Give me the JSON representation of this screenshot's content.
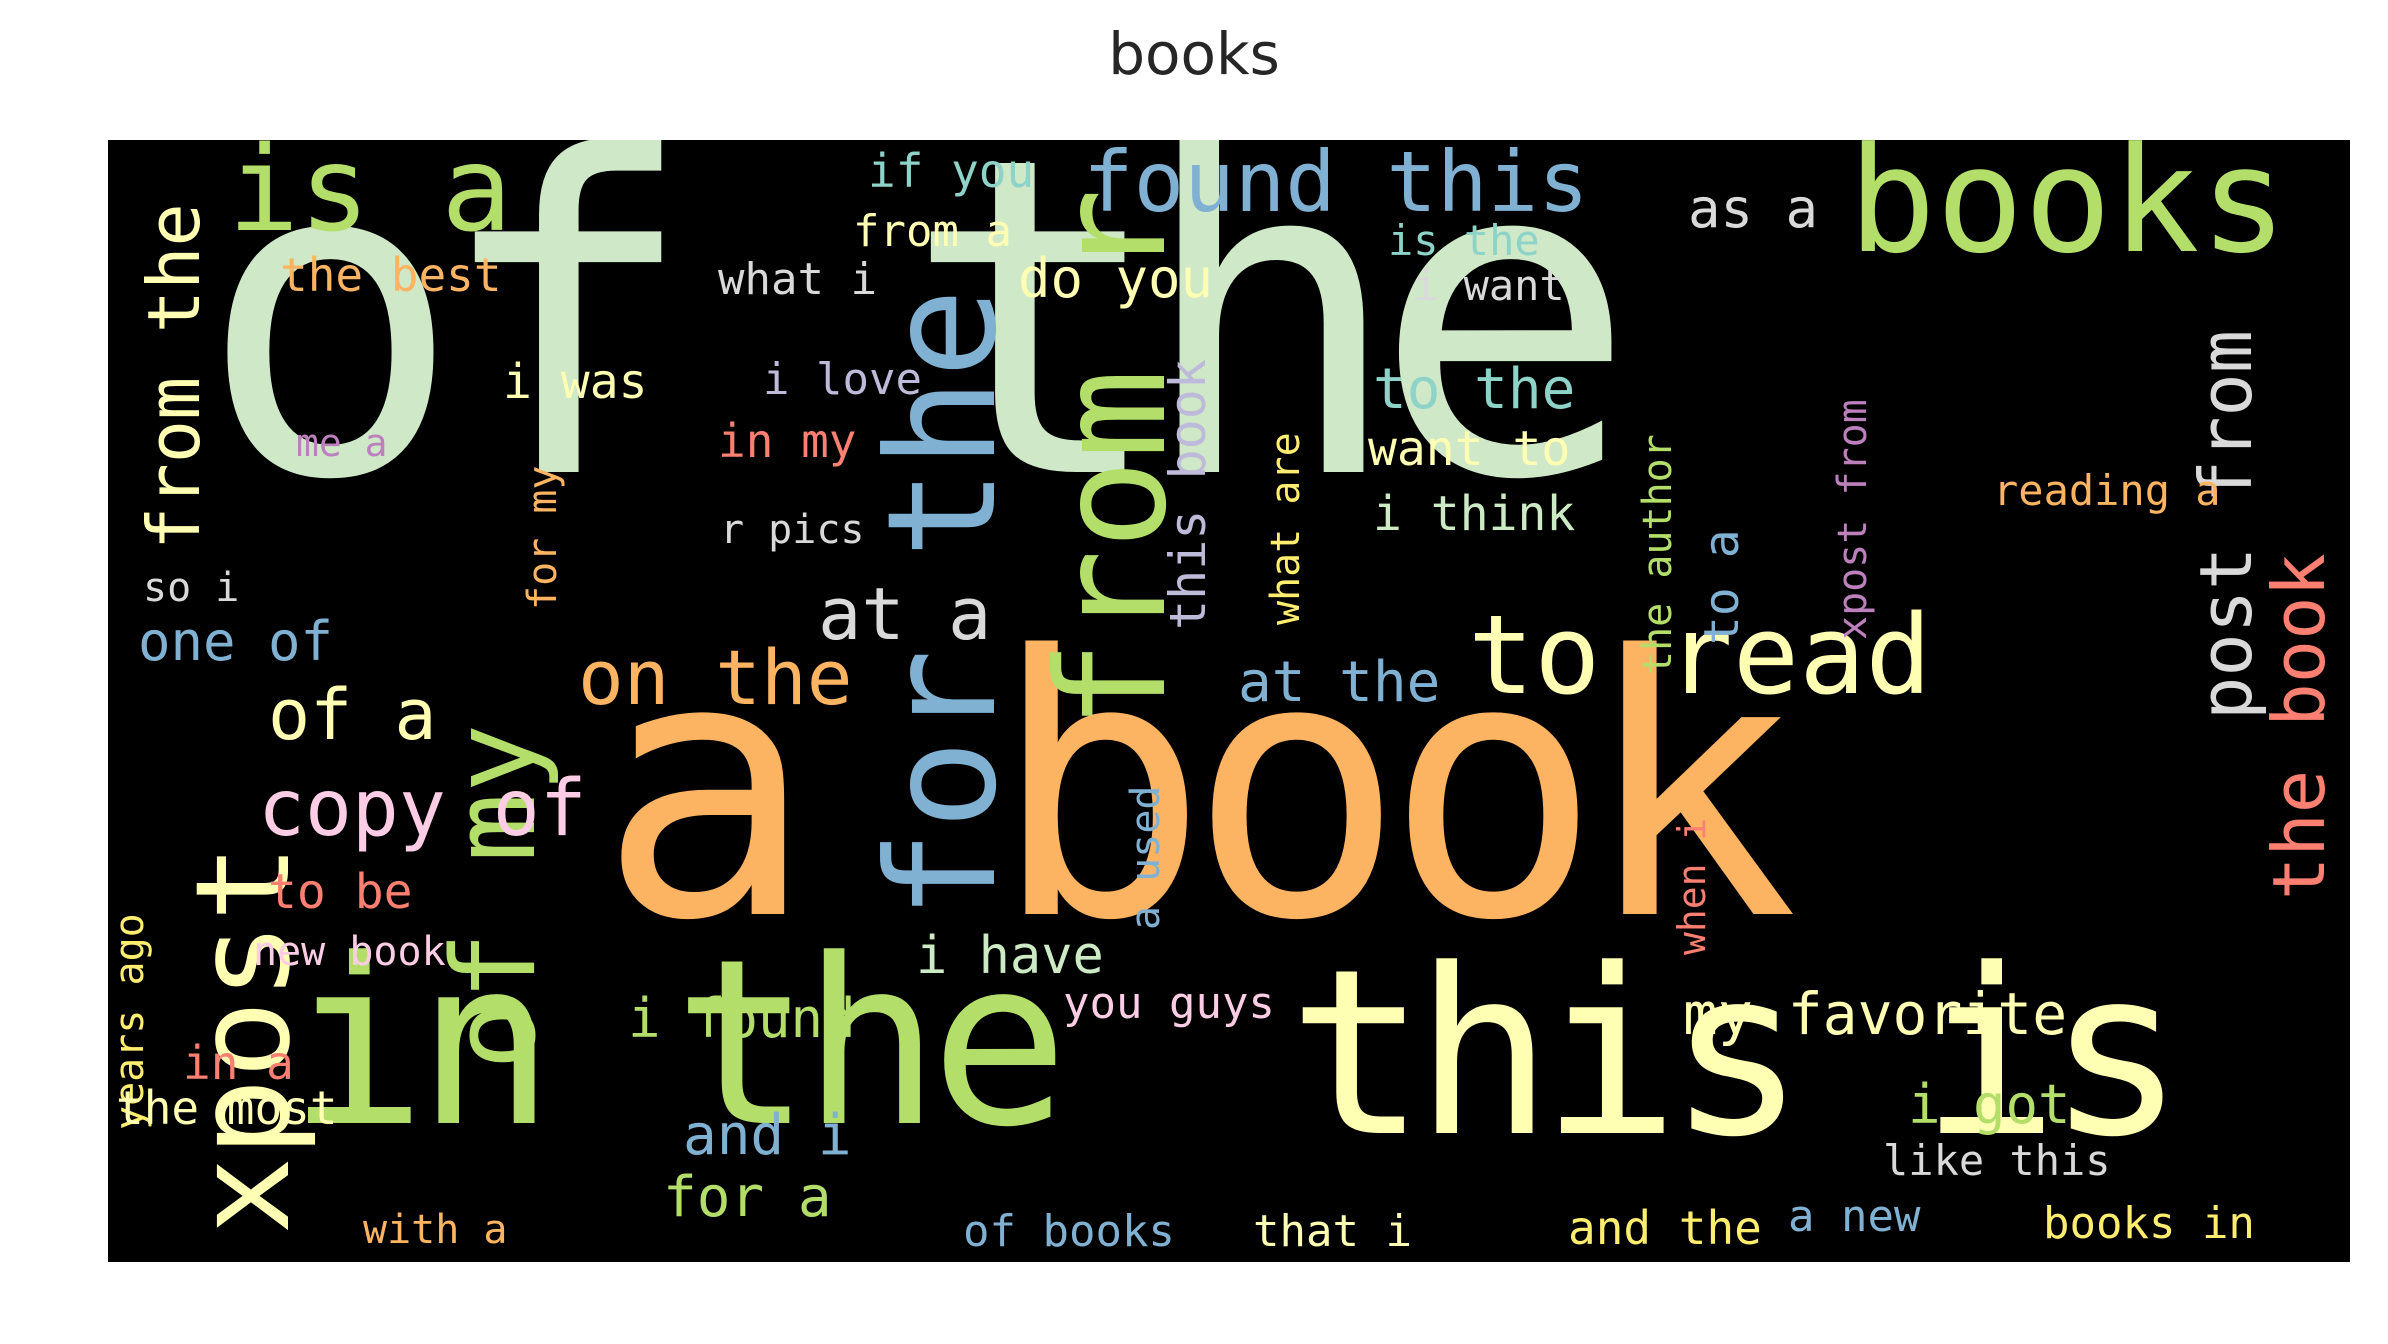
{
  "title": "books",
  "colors": {
    "background": "#000000",
    "mint": "#cfe8c8",
    "orange": "#fdb462",
    "green": "#b3de69",
    "yellow": "#ffffb3",
    "blue": "#80b1d3",
    "salmon": "#fb8072",
    "pink": "#fccde5",
    "lavender": "#bebada",
    "teal": "#8dd3c7",
    "grey": "#d9d9d9",
    "purple": "#bc80bd"
  },
  "words": [
    {
      "text": "of the",
      "color": "#cfe8c8"
    },
    {
      "text": "a book",
      "color": "#fdb462"
    },
    {
      "text": "in the",
      "color": "#b3de69"
    },
    {
      "text": "this is",
      "color": "#ffffb3"
    },
    {
      "text": "books",
      "color": "#b3de69"
    },
    {
      "text": "for the",
      "color": "#80b1d3"
    },
    {
      "text": "from r",
      "color": "#b3de69"
    },
    {
      "text": "is a",
      "color": "#b3de69"
    },
    {
      "text": "xpost",
      "color": "#ffffb3"
    },
    {
      "text": "of my",
      "color": "#b3de69"
    },
    {
      "text": "to read",
      "color": "#ffffb3"
    },
    {
      "text": "found this",
      "color": "#80b1d3"
    },
    {
      "text": "copy of",
      "color": "#fccde5"
    },
    {
      "text": "on the",
      "color": "#fdb462"
    },
    {
      "text": "from the",
      "color": "#ffffb3"
    },
    {
      "text": "post from",
      "color": "#d9d9d9"
    },
    {
      "text": "the book",
      "color": "#fb8072"
    },
    {
      "text": "my favorite",
      "color": "#ffffb3"
    },
    {
      "text": "at a",
      "color": "#d9d9d9"
    },
    {
      "text": "of a",
      "color": "#ffffb3"
    },
    {
      "text": "i found",
      "color": "#b3de69"
    },
    {
      "text": "i have",
      "color": "#ccebc5"
    },
    {
      "text": "i got",
      "color": "#b3de69"
    },
    {
      "text": "as a",
      "color": "#d9d9d9"
    },
    {
      "text": "and i",
      "color": "#80b1d3"
    },
    {
      "text": "for a",
      "color": "#b3de69"
    },
    {
      "text": "one of",
      "color": "#80b1d3"
    },
    {
      "text": "at the",
      "color": "#80b1d3"
    },
    {
      "text": "to the",
      "color": "#8dd3c7"
    },
    {
      "text": "want to",
      "color": "#ffffb3"
    },
    {
      "text": "i think",
      "color": "#ccebc5"
    },
    {
      "text": "do you",
      "color": "#ffffb3"
    },
    {
      "text": "if you",
      "color": "#8dd3c7"
    },
    {
      "text": "from a",
      "color": "#ffffb3"
    },
    {
      "text": "what i",
      "color": "#d9d9d9"
    },
    {
      "text": "is the",
      "color": "#8dd3c7"
    },
    {
      "text": "i want",
      "color": "#d9d9d9"
    },
    {
      "text": "the best",
      "color": "#fdb462"
    },
    {
      "text": "i was",
      "color": "#ffffb3"
    },
    {
      "text": "i love",
      "color": "#bebada"
    },
    {
      "text": "in my",
      "color": "#fb8072"
    },
    {
      "text": "r pics",
      "color": "#d9d9d9"
    },
    {
      "text": "me a",
      "color": "#bc80bd"
    },
    {
      "text": "so i",
      "color": "#d9d9d9"
    },
    {
      "text": "reading a",
      "color": "#fdb462"
    },
    {
      "text": "this book",
      "color": "#bebada"
    },
    {
      "text": "what are",
      "color": "#ffed6f"
    },
    {
      "text": "for my",
      "color": "#fdb462"
    },
    {
      "text": "the author",
      "color": "#b3de69"
    },
    {
      "text": "to a",
      "color": "#80b1d3"
    },
    {
      "text": "xpost from",
      "color": "#bc80bd"
    },
    {
      "text": "to be",
      "color": "#fb8072"
    },
    {
      "text": "new book",
      "color": "#fccde5"
    },
    {
      "text": "years ago",
      "color": "#ffed6f"
    },
    {
      "text": "in a",
      "color": "#fb8072"
    },
    {
      "text": "the most",
      "color": "#ffffb3"
    },
    {
      "text": "with a",
      "color": "#fdb462"
    },
    {
      "text": "a used",
      "color": "#80b1d3"
    },
    {
      "text": "when i",
      "color": "#fb8072"
    },
    {
      "text": "you guys",
      "color": "#fccde5"
    },
    {
      "text": "of books",
      "color": "#80b1d3"
    },
    {
      "text": "that i",
      "color": "#ffffb3"
    },
    {
      "text": "and the",
      "color": "#ffed6f"
    },
    {
      "text": "a new",
      "color": "#80b1d3"
    },
    {
      "text": "like this",
      "color": "#d9d9d9"
    },
    {
      "text": "books in",
      "color": "#ffed6f"
    }
  ]
}
